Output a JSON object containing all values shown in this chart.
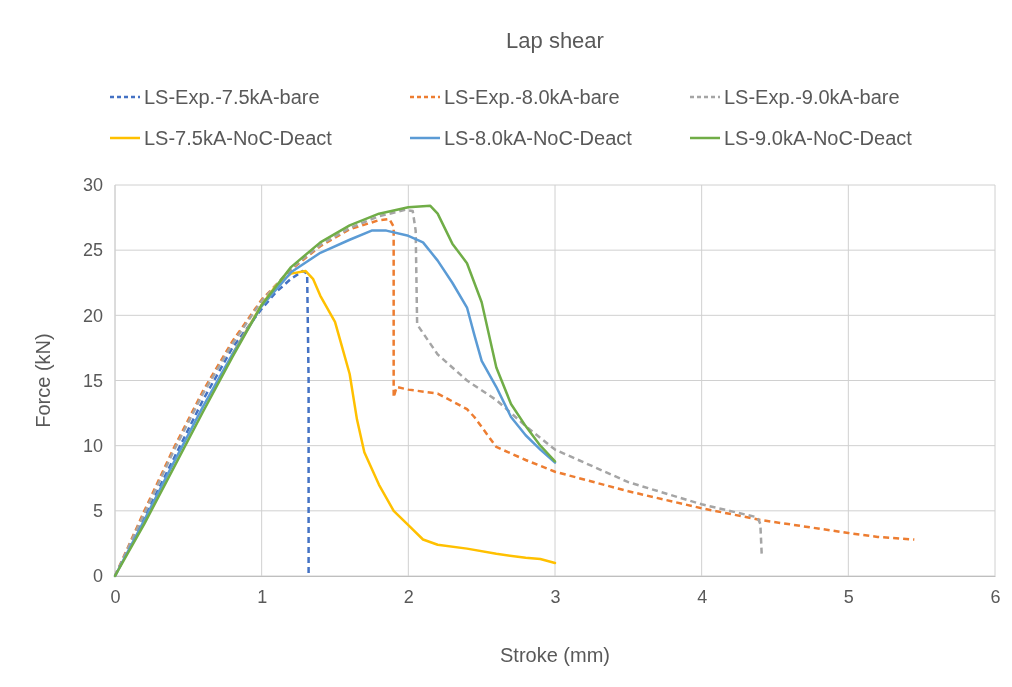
{
  "chart_data": {
    "type": "line",
    "title": "Lap shear",
    "xlabel": "Stroke (mm)",
    "ylabel": "Force (kN)",
    "xlim": [
      0,
      6
    ],
    "xticks": [
      0,
      1,
      2,
      3,
      4,
      5,
      6
    ],
    "ylim": [
      0,
      30
    ],
    "yticks": [
      0,
      5,
      10,
      15,
      20,
      25,
      30
    ],
    "grid": true,
    "legend": "top",
    "marker": "none",
    "series": [
      {
        "name": "LS-Exp.-7.5kA-bare",
        "color": "#4472c4",
        "line_style": "dashed",
        "x": [
          0,
          0.2,
          0.4,
          0.6,
          0.8,
          1.0,
          1.1,
          1.2,
          1.28,
          1.31,
          1.32,
          1.32
        ],
        "values": [
          0,
          4.5,
          9,
          13.5,
          17.5,
          20.5,
          21.8,
          22.8,
          23.4,
          23.2,
          15,
          0
        ]
      },
      {
        "name": "LS-Exp.-8.0kA-bare",
        "color": "#ed7d31",
        "line_style": "dashed",
        "x": [
          0,
          0.2,
          0.4,
          0.6,
          0.8,
          1.0,
          1.2,
          1.4,
          1.6,
          1.8,
          1.87,
          1.9,
          1.9,
          1.9,
          1.92,
          2.0,
          2.2,
          2.4,
          2.45,
          2.6,
          2.8,
          3.0,
          3.5,
          4.0,
          4.4,
          5.0,
          5.2,
          5.45
        ],
        "values": [
          0,
          5,
          9.8,
          14.2,
          18,
          21.2,
          23.5,
          25.3,
          26.6,
          27.3,
          27.4,
          26.8,
          20,
          13.7,
          14.5,
          14.3,
          14,
          12.8,
          12.2,
          9.9,
          8.9,
          8,
          6.5,
          5.2,
          4.3,
          3.3,
          3,
          2.8
        ]
      },
      {
        "name": "LS-Exp.-9.0kA-bare",
        "color": "#a5a5a5",
        "line_style": "dashed",
        "x": [
          0,
          0.2,
          0.4,
          0.6,
          0.8,
          1.0,
          1.2,
          1.4,
          1.6,
          1.8,
          1.98,
          2.03,
          2.05,
          2.06,
          2.2,
          2.4,
          2.6,
          2.8,
          3.0,
          3.5,
          4.0,
          4.38,
          4.4,
          4.41
        ],
        "values": [
          0,
          4.8,
          9.6,
          14,
          17.8,
          21.1,
          23.6,
          25.4,
          26.7,
          27.6,
          28.1,
          28,
          26.5,
          19.3,
          17,
          15,
          13.5,
          11.5,
          9.7,
          7.2,
          5.5,
          4.5,
          4,
          1.5
        ]
      },
      {
        "name": "LS-7.5kA-NoC-Deact",
        "color": "#ffc000",
        "line_style": "solid",
        "x": [
          0.8,
          1.0,
          1.1,
          1.2,
          1.3,
          1.35,
          1.4,
          1.5,
          1.55,
          1.6,
          1.65,
          1.7,
          1.8,
          1.9,
          2.0,
          2.1,
          2.2,
          2.4,
          2.6,
          2.8,
          2.9,
          3.0
        ],
        "values": [
          17,
          20.8,
          22.3,
          23.2,
          23.4,
          22.8,
          21.5,
          19.5,
          17.5,
          15.5,
          12,
          9.5,
          7,
          5,
          3.9,
          2.8,
          2.4,
          2.1,
          1.7,
          1.4,
          1.3,
          1
        ]
      },
      {
        "name": "LS-8.0kA-NoC-Deact",
        "color": "#5b9bd5",
        "line_style": "solid",
        "x": [
          0,
          0.2,
          0.4,
          0.6,
          0.8,
          1.0,
          1.2,
          1.4,
          1.6,
          1.75,
          1.85,
          2.0,
          2.1,
          2.2,
          2.3,
          2.4,
          2.45,
          2.5,
          2.6,
          2.7,
          2.8,
          2.9,
          3.0
        ],
        "values": [
          0,
          4.3,
          8.7,
          13,
          17,
          20.7,
          23.3,
          24.8,
          25.8,
          26.5,
          26.5,
          26.1,
          25.6,
          24.2,
          22.5,
          20.6,
          18.5,
          16.5,
          14.5,
          12.2,
          10.8,
          9.7,
          8.7
        ]
      },
      {
        "name": "LS-9.0kA-NoC-Deact",
        "color": "#70ad47",
        "line_style": "solid",
        "x": [
          0,
          0.2,
          0.4,
          0.6,
          0.8,
          1.0,
          1.2,
          1.4,
          1.6,
          1.8,
          2.0,
          2.15,
          2.2,
          2.3,
          2.4,
          2.5,
          2.6,
          2.7,
          2.8,
          2.9,
          3.0
        ],
        "values": [
          0,
          4,
          8.3,
          12.6,
          16.8,
          20.8,
          23.7,
          25.6,
          26.9,
          27.8,
          28.3,
          28.4,
          27.8,
          25.5,
          24,
          21,
          16,
          13.2,
          11.5,
          10,
          8.8
        ]
      }
    ]
  }
}
